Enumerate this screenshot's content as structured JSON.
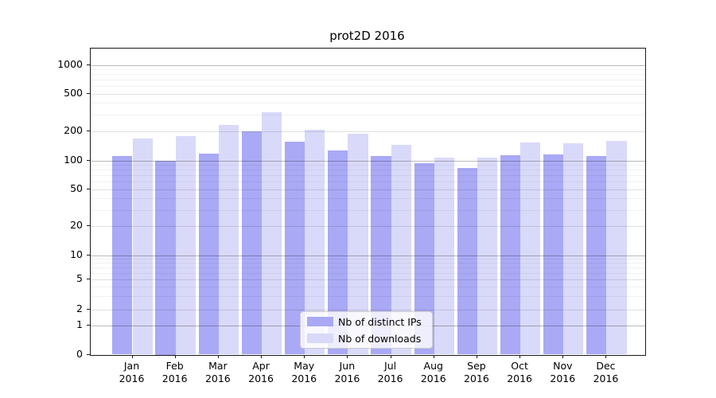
{
  "title": "prot2D 2016",
  "chart_data": {
    "type": "bar",
    "title": "prot2D 2016",
    "categories": [
      "Jan",
      "Feb",
      "Mar",
      "Apr",
      "May",
      "Jun",
      "Jul",
      "Aug",
      "Sep",
      "Oct",
      "Nov",
      "Dec"
    ],
    "category_year": "2016",
    "series": [
      {
        "name": "Nb of distinct IPs",
        "color": "#a9a9f5",
        "values": [
          110,
          100,
          118,
          199,
          157,
          128,
          111,
          93,
          84,
          113,
          116,
          111
        ]
      },
      {
        "name": "Nb of downloads",
        "color": "#d9d9f9",
        "values": [
          170,
          179,
          234,
          322,
          206,
          188,
          144,
          107,
          106,
          153,
          150,
          159
        ]
      }
    ],
    "xlabel": "",
    "ylabel": "",
    "yscale": "symlog",
    "ytick_values": [
      0,
      1,
      2,
      5,
      10,
      20,
      50,
      100,
      200,
      500,
      1000
    ],
    "ytick_labels": [
      "0",
      "1",
      "2",
      "5",
      "10",
      "20",
      "50",
      "100",
      "200",
      "500",
      "1000"
    ],
    "major_grid_values": [
      1,
      10,
      100,
      1000
    ],
    "mid_grid_values": [
      2,
      5,
      20,
      50,
      200,
      500
    ],
    "minor_grid_values": [
      3,
      4,
      6,
      7,
      8,
      9,
      30,
      40,
      60,
      70,
      80,
      90,
      300,
      400,
      600,
      700,
      800,
      900
    ],
    "ylim": [
      0,
      1500
    ],
    "grid": true,
    "grid_above_bars": true,
    "legend_position": "lower center"
  },
  "colors": {
    "bar_distinct_ips": "#a9a9f5",
    "bar_downloads": "#d9d9f9",
    "spine": "#1a1a1a",
    "text": "#000000"
  }
}
